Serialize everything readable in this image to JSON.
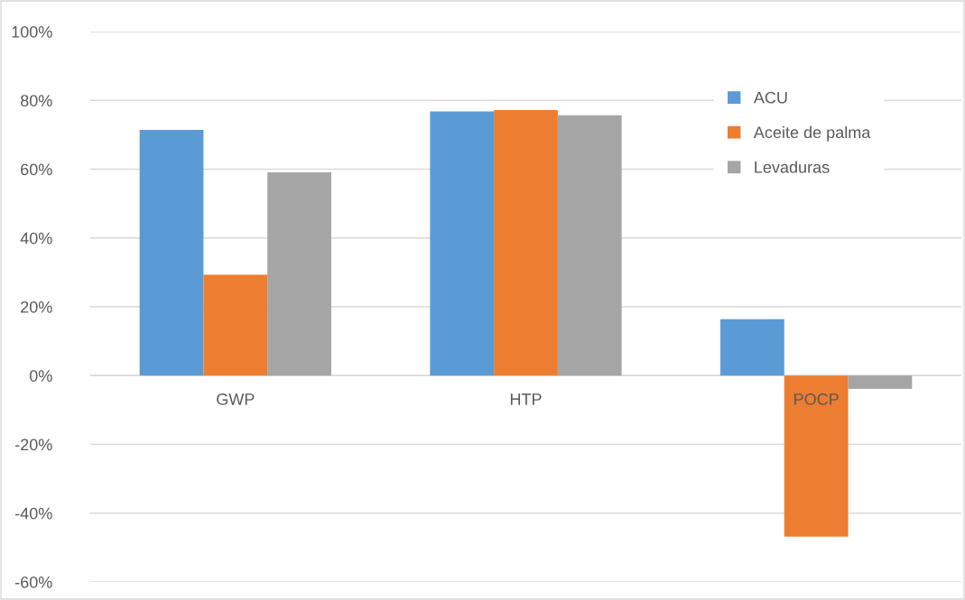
{
  "chart_data": {
    "type": "bar",
    "categories": [
      "GWP",
      "HTP",
      "POCP"
    ],
    "series": [
      {
        "name": "ACU",
        "color": "#5b9bd5",
        "values": [
          71.4,
          76.8,
          16.4
        ]
      },
      {
        "name": "Aceite de palma",
        "color": "#ed7d31",
        "values": [
          29.3,
          77.2,
          -46.8
        ]
      },
      {
        "name": "Levaduras",
        "color": "#a5a5a5",
        "values": [
          59.1,
          75.7,
          -3.9
        ]
      }
    ],
    "ylim": [
      -60,
      100
    ],
    "yticks": [
      {
        "value": -60,
        "label": "-60%"
      },
      {
        "value": -40,
        "label": "-40%"
      },
      {
        "value": -20,
        "label": "-20%"
      },
      {
        "value": 0,
        "label": "0%"
      },
      {
        "value": 20,
        "label": "20%"
      },
      {
        "value": 40,
        "label": "40%"
      },
      {
        "value": 60,
        "label": "60%"
      },
      {
        "value": 80,
        "label": "80%"
      },
      {
        "value": 100,
        "label": "100%"
      }
    ],
    "grid": "y",
    "legend": "top right"
  }
}
